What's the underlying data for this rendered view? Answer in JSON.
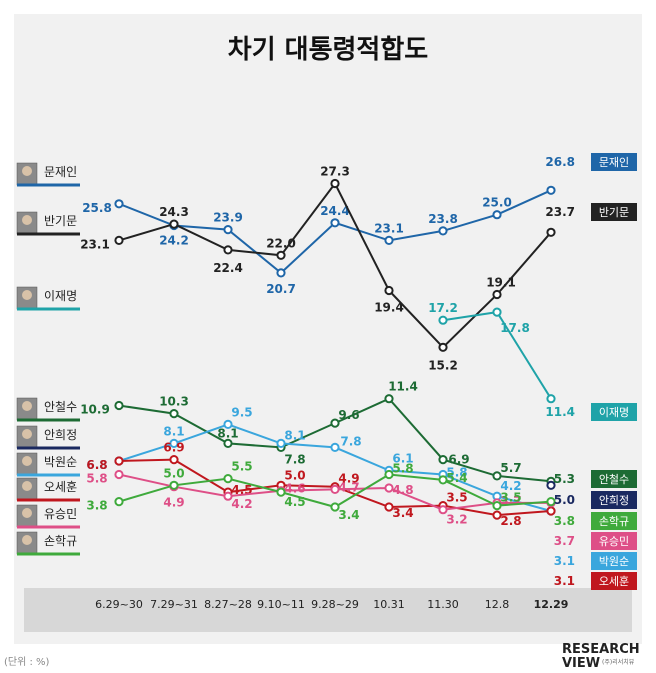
{
  "page": {
    "title": "차기 대통령적합도",
    "unit_note": "(단위 : %)",
    "logo_top": "RESEARCH",
    "logo_bottom": "VIEW",
    "logo_sub": "(주)리서치뷰"
  },
  "chart_data": {
    "type": "line",
    "title": "차기 대통령적합도",
    "xlabel": "",
    "ylabel": "",
    "ylim": [
      0,
      30
    ],
    "grid": false,
    "legend": "right",
    "categories": [
      "6.29~30",
      "7.29~31",
      "8.27~28",
      "9.10~11",
      "9.28~29",
      "10.31",
      "11.30",
      "12.8",
      "12.29"
    ],
    "series": [
      {
        "name": "문재인",
        "color": "#1f66a8",
        "values": [
          25.8,
          24.2,
          23.9,
          20.7,
          24.4,
          23.1,
          23.8,
          25.0,
          26.8
        ],
        "labels": [
          "25.8",
          "24.2",
          "23.9",
          "20.7",
          "24.4",
          "23.1",
          "23.8",
          "25.0",
          "26.8"
        ]
      },
      {
        "name": "반기문",
        "color": "#222222",
        "values": [
          23.1,
          24.3,
          22.4,
          22.0,
          27.3,
          19.4,
          15.2,
          19.1,
          23.7
        ],
        "labels": [
          "23.1",
          "24.3",
          "22.4",
          "22.0",
          "27.3",
          "19.4",
          "15.2",
          "19.1",
          "23.7"
        ]
      },
      {
        "name": "이재명",
        "color": "#1fa3a8",
        "values": [
          null,
          null,
          null,
          null,
          null,
          null,
          17.2,
          17.8,
          11.4
        ],
        "labels": [
          "",
          "",
          "",
          "",
          "",
          "",
          "17.2",
          "17.8",
          "11.4"
        ]
      },
      {
        "name": "안철수",
        "color": "#1d6b34",
        "values": [
          10.9,
          10.3,
          8.1,
          7.8,
          9.6,
          11.4,
          6.9,
          5.7,
          5.3
        ],
        "labels": [
          "10.9",
          "10.3",
          "8.1",
          "7.8",
          "9.6",
          "11.4",
          "6.9",
          "5.7",
          "5.3"
        ]
      },
      {
        "name": "안희정",
        "color": "#1a2960",
        "values": [
          null,
          null,
          null,
          null,
          null,
          null,
          null,
          null,
          5.0
        ],
        "labels": [
          "",
          "",
          "",
          "",
          "",
          "",
          "",
          "",
          "5.0"
        ]
      },
      {
        "name": "박원순",
        "color": "#3aa6dd",
        "values": [
          6.8,
          8.1,
          9.5,
          8.1,
          7.8,
          6.1,
          5.8,
          4.2,
          3.1
        ],
        "labels": [
          "6.8",
          "8.1",
          "9.5",
          "8.1",
          "7.8",
          "6.1",
          "5.8",
          "4.2",
          "3.1"
        ]
      },
      {
        "name": "오세훈",
        "color": "#c0171e",
        "values": [
          6.8,
          6.9,
          4.5,
          5.0,
          4.9,
          3.4,
          3.5,
          2.8,
          3.1
        ],
        "labels": [
          "6.8",
          "6.9",
          "4.5",
          "5.0",
          "4.9",
          "3.4",
          "3.5",
          "2.8",
          "3.1"
        ]
      },
      {
        "name": "유승민",
        "color": "#de4f87",
        "values": [
          5.8,
          4.9,
          4.2,
          4.6,
          4.7,
          4.8,
          3.2,
          3.7,
          3.7
        ],
        "labels": [
          "5.8",
          "4.9",
          "4.2",
          "4.6",
          "4.7",
          "4.8",
          "3.2",
          "3.7",
          "3.7"
        ]
      },
      {
        "name": "손학규",
        "color": "#3faa3c",
        "values": [
          3.8,
          5.0,
          5.5,
          4.5,
          3.4,
          5.8,
          5.4,
          3.5,
          3.8
        ],
        "labels": [
          "3.8",
          "5.0",
          "5.5",
          "4.5",
          "3.4",
          "5.8",
          "5.4",
          "3.5",
          "3.8"
        ]
      }
    ]
  }
}
